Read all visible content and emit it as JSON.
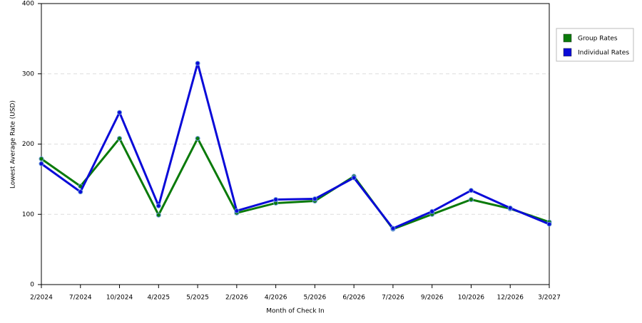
{
  "chart_data": {
    "type": "line",
    "x_label": "Month of Check In",
    "y_label": "Lowest Average Rate (USD)",
    "categories": [
      "2/2024",
      "7/2024",
      "10/2024",
      "4/2025",
      "5/2025",
      "2/2026",
      "4/2026",
      "5/2026",
      "6/2026",
      "7/2026",
      "9/2026",
      "10/2026",
      "12/2026",
      "3/2027"
    ],
    "series": [
      {
        "name": "Group Rates",
        "color": "#0a7a0a",
        "values": [
          179,
          140,
          208,
          99,
          208,
          102,
          116,
          119,
          154,
          79,
          100,
          121,
          108,
          89
        ]
      },
      {
        "name": "Individual Rates",
        "color": "#0a0ad8",
        "values": [
          172,
          132,
          245,
          112,
          315,
          105,
          121,
          122,
          152,
          80,
          104,
          134,
          109,
          86
        ]
      }
    ],
    "ylim": [
      0,
      400
    ],
    "yticks": [
      0,
      100,
      200,
      300,
      400
    ],
    "grid": true,
    "legend": "right"
  }
}
